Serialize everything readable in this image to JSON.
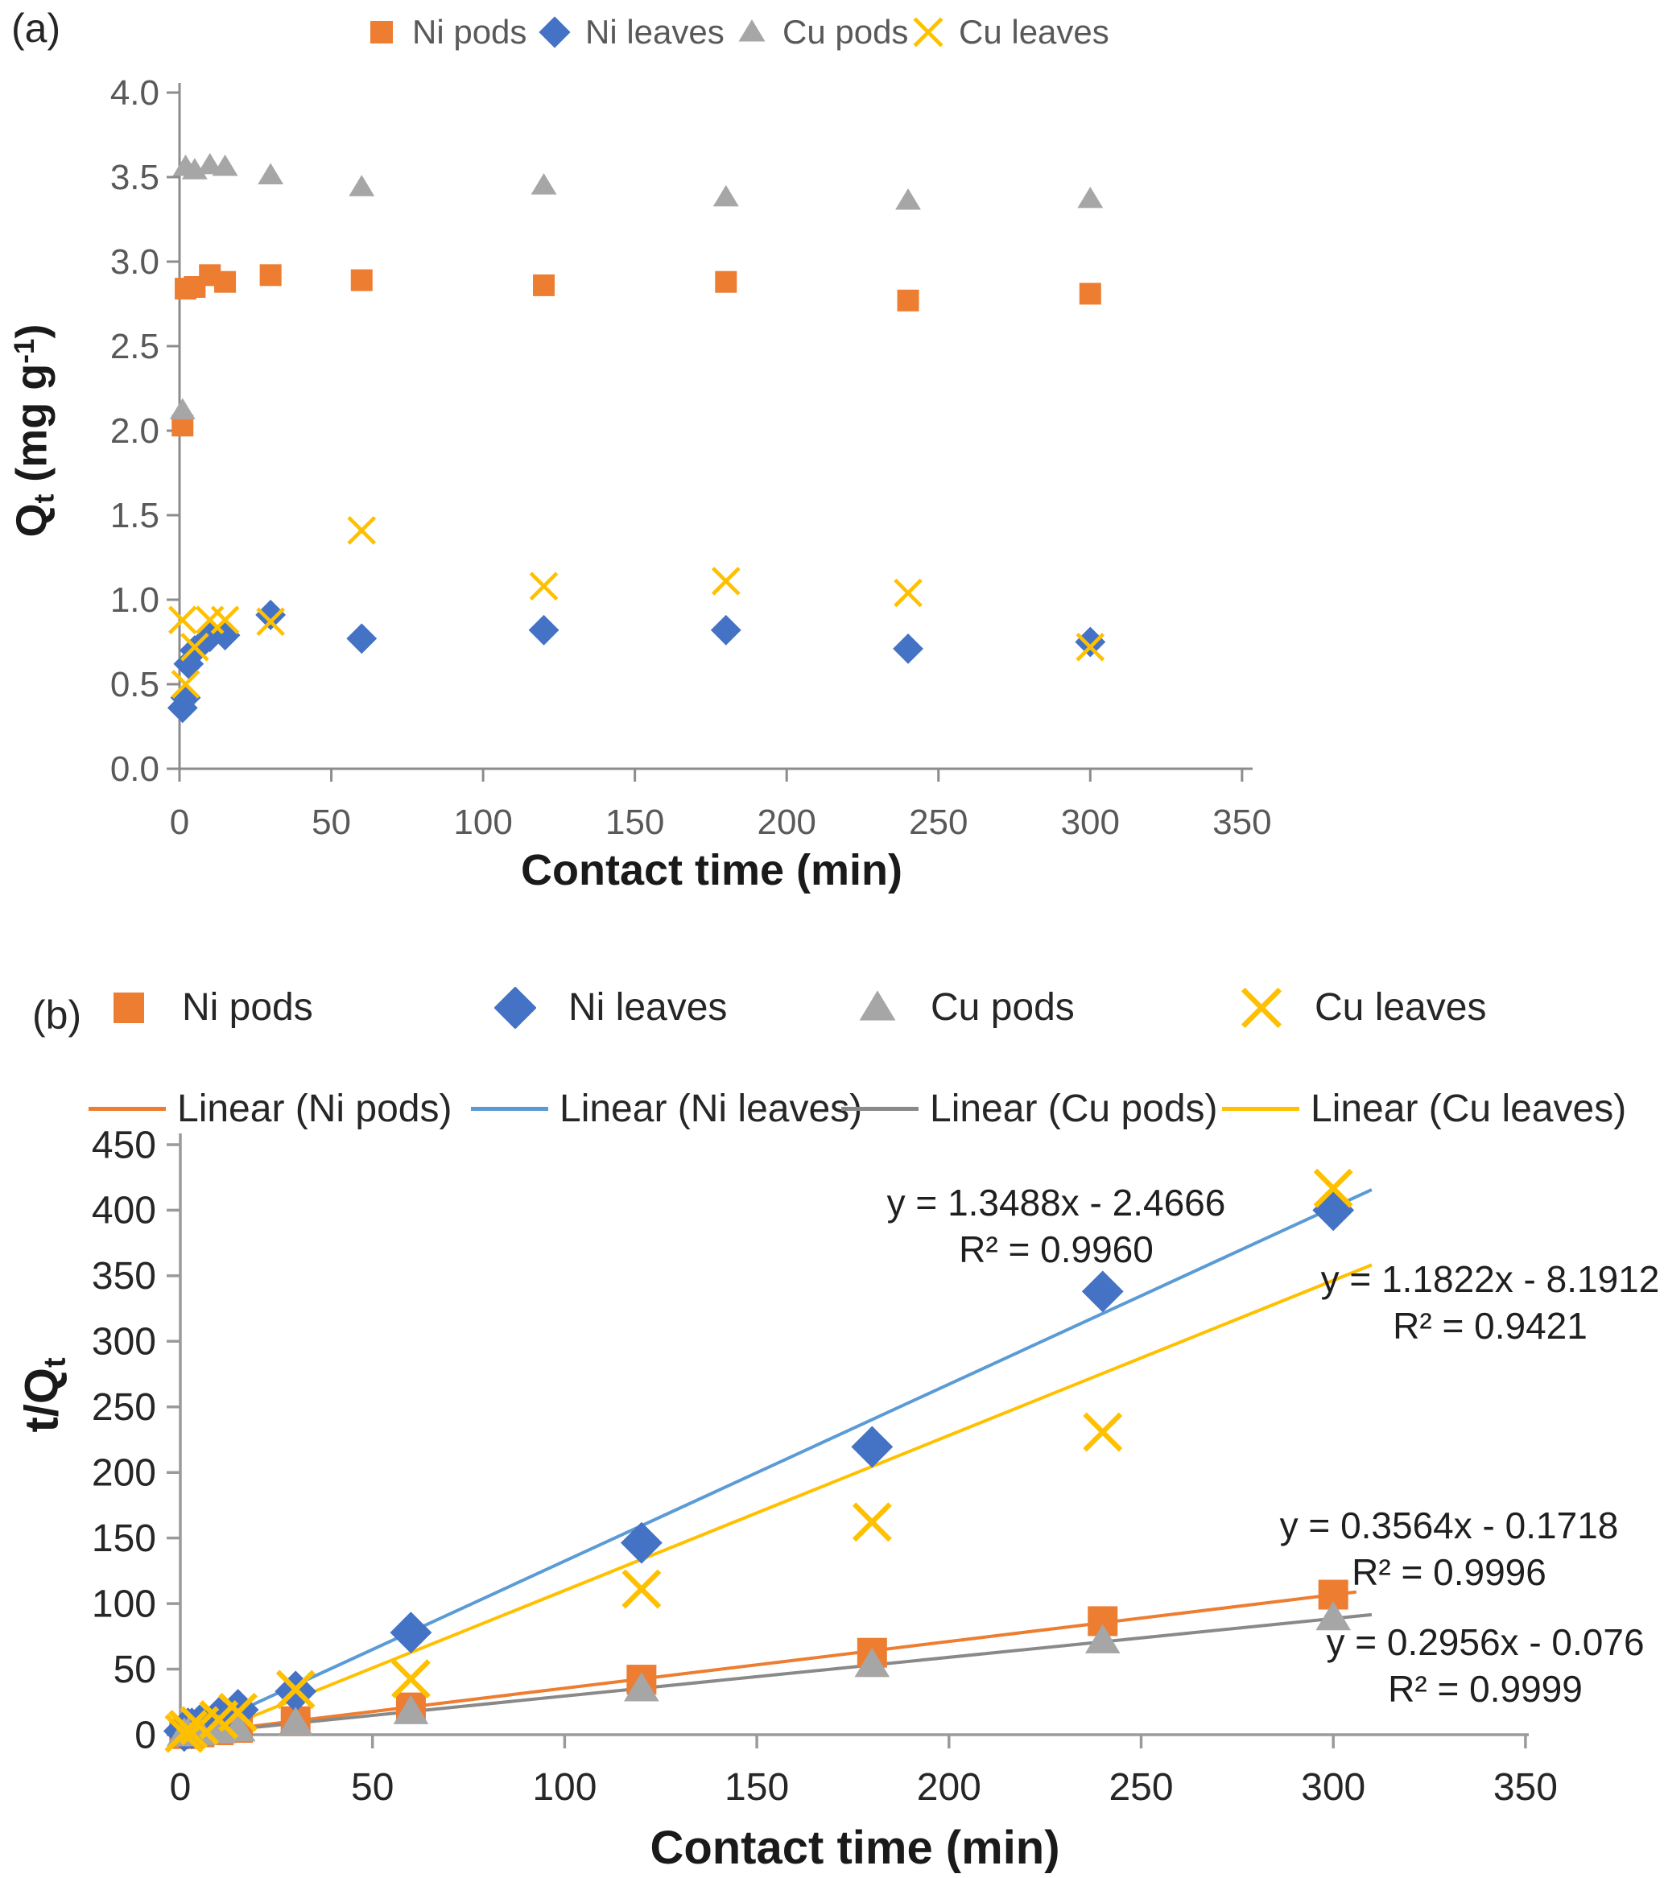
{
  "figure": {
    "panel_a_label": "(a)",
    "panel_b_label": "(b)"
  },
  "panel_a": {
    "legend": [
      {
        "label": "Ni pods"
      },
      {
        "label": "Ni leaves"
      },
      {
        "label": "Cu pods"
      },
      {
        "label": "Cu leaves"
      }
    ],
    "y_title": {
      "base": "Q",
      "sub": "t",
      "mid": " (mg g",
      "sup": "-1",
      "end": ")"
    },
    "x_title": "Contact time (min)"
  },
  "panel_b": {
    "legend": [
      {
        "label": "Ni pods"
      },
      {
        "label": "Ni leaves"
      },
      {
        "label": "Cu pods"
      },
      {
        "label": "Cu leaves"
      }
    ],
    "legend_lines": [
      {
        "label": "Linear (Ni pods)"
      },
      {
        "label": "Linear (Ni leaves)"
      },
      {
        "label": "Linear (Cu pods)"
      },
      {
        "label": "Linear (Cu leaves)"
      }
    ],
    "y_title": {
      "base": "t/Q",
      "sub": "t"
    },
    "x_title": "Contact time (min)",
    "equations": [
      {
        "series": "Ni leaves",
        "line1": "y = 1.3488x - 2.4666",
        "line2": "R² = 0.9960"
      },
      {
        "series": "Cu leaves",
        "line1": "y = 1.1822x - 8.1912",
        "line2": "R² = 0.9421"
      },
      {
        "series": "Ni pods",
        "line1": "y = 0.3564x - 0.1718",
        "line2": "R² = 0.9996"
      },
      {
        "series": "Cu pods",
        "line1": "y = 0.2956x - 0.076",
        "line2": "R² = 0.9999"
      }
    ]
  },
  "chart_data": [
    {
      "panel": "a",
      "type": "scatter",
      "title": "",
      "xlabel": "Contact time (min)",
      "ylabel": "Qt (mg g-1)",
      "xlim": [
        0,
        350
      ],
      "xstep": 50,
      "ylim": [
        0,
        4.0
      ],
      "ystep": 0.5,
      "y_decimals": 1,
      "grid": false,
      "legend_position": "top",
      "series": [
        {
          "name": "Ni pods",
          "marker": "square",
          "color": "#ED7D31",
          "x": [
            1,
            2,
            5,
            10,
            15,
            30,
            60,
            120,
            180,
            240,
            300
          ],
          "y": [
            2.03,
            2.84,
            2.85,
            2.92,
            2.88,
            2.92,
            2.89,
            2.86,
            2.88,
            2.77,
            2.81
          ]
        },
        {
          "name": "Ni leaves",
          "marker": "diamond",
          "color": "#4472C4",
          "x": [
            1,
            2,
            3,
            5,
            10,
            15,
            30,
            60,
            120,
            180,
            240,
            300
          ],
          "y": [
            0.36,
            0.42,
            0.62,
            0.7,
            0.78,
            0.79,
            0.91,
            0.77,
            0.82,
            0.82,
            0.71,
            0.75
          ]
        },
        {
          "name": "Cu pods",
          "marker": "triangle",
          "color": "#A6A6A6",
          "x": [
            1,
            2,
            5,
            10,
            15,
            30,
            60,
            120,
            180,
            240,
            300
          ],
          "y": [
            2.12,
            3.56,
            3.54,
            3.57,
            3.56,
            3.51,
            3.44,
            3.45,
            3.38,
            3.36,
            3.37
          ]
        },
        {
          "name": "Cu leaves",
          "marker": "x",
          "color": "#FFC000",
          "x": [
            1,
            2,
            5,
            10,
            15,
            30,
            60,
            120,
            180,
            240,
            300
          ],
          "y": [
            0.88,
            0.5,
            0.72,
            0.88,
            0.88,
            0.87,
            1.41,
            1.08,
            1.11,
            1.04,
            0.72
          ]
        }
      ]
    },
    {
      "panel": "b",
      "type": "scatter",
      "title": "",
      "xlabel": "Contact time (min)",
      "ylabel": "t/Qt",
      "xlim": [
        0,
        350
      ],
      "xstep": 50,
      "ylim": [
        0,
        450
      ],
      "ystep": 50,
      "y_decimals": 0,
      "grid": false,
      "legend_position": "top",
      "series": [
        {
          "name": "Ni pods",
          "marker": "square",
          "color": "#ED7D31",
          "x": [
            1,
            2,
            5,
            10,
            15,
            30,
            60,
            120,
            180,
            240,
            300
          ],
          "y": [
            0.5,
            0.7,
            1.8,
            3.4,
            5.2,
            10.3,
            20.8,
            42.0,
            62.5,
            86.6,
            106.8
          ]
        },
        {
          "name": "Ni leaves",
          "marker": "diamond",
          "color": "#4472C4",
          "x": [
            1,
            2,
            3,
            5,
            10,
            15,
            30,
            60,
            120,
            180,
            240,
            300
          ],
          "y": [
            2.8,
            4.8,
            4.8,
            7.1,
            12.8,
            19.0,
            33.0,
            77.9,
            146.3,
            219.5,
            338.0,
            400.0
          ]
        },
        {
          "name": "Cu pods",
          "marker": "triangle",
          "color": "#A6A6A6",
          "x": [
            1,
            2,
            5,
            10,
            15,
            30,
            60,
            120,
            180,
            240,
            300
          ],
          "y": [
            0.5,
            0.6,
            1.4,
            2.8,
            4.2,
            8.5,
            17.4,
            34.8,
            53.3,
            71.4,
            89.0
          ]
        },
        {
          "name": "Cu leaves",
          "marker": "x",
          "color": "#FFC000",
          "x": [
            1,
            2,
            5,
            10,
            15,
            30,
            60,
            120,
            180,
            240,
            300
          ],
          "y": [
            1.1,
            4.0,
            6.9,
            11.4,
            17.0,
            34.5,
            42.6,
            111.1,
            162.2,
            230.8,
            416.7
          ]
        }
      ],
      "trendlines": [
        {
          "name": "Linear (Ni pods)",
          "color": "#ED7D31",
          "slope": 0.3564,
          "intercept": -0.1718,
          "x_start": 1,
          "x_end": 306,
          "equation": "y = 0.3564x - 0.1718",
          "r2": 0.9996
        },
        {
          "name": "Linear (Ni leaves)",
          "color": "#5B9BD5",
          "slope": 1.3488,
          "intercept": -2.4666,
          "x_start": 1,
          "x_end": 310,
          "equation": "y = 1.3488x - 2.4666",
          "r2": 0.996
        },
        {
          "name": "Linear (Cu pods)",
          "color": "#898989",
          "slope": 0.2956,
          "intercept": -0.076,
          "x_start": 1,
          "x_end": 310,
          "equation": "y = 0.2956x - 0.076",
          "r2": 0.9999
        },
        {
          "name": "Linear (Cu leaves)",
          "color": "#FFC000",
          "slope": 1.1822,
          "intercept": -8.1912,
          "x_start": 1,
          "x_end": 310,
          "equation": "y = 1.1822x - 8.1912",
          "r2": 0.9421
        }
      ]
    }
  ]
}
